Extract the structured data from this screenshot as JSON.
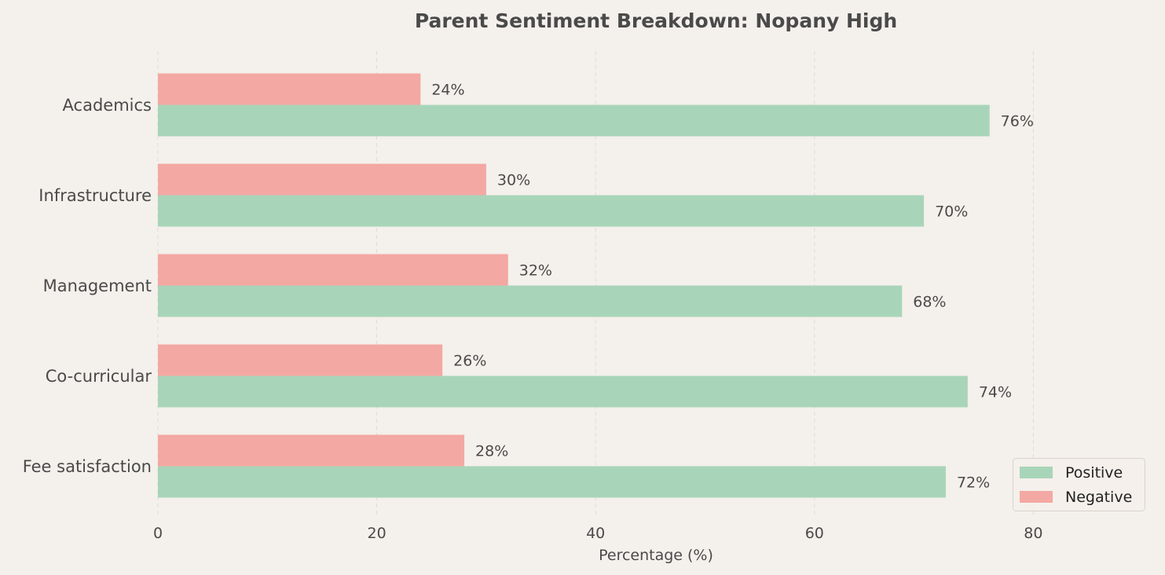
{
  "chart_data": {
    "type": "bar",
    "orientation": "horizontal",
    "title": "Parent Sentiment Breakdown: Nopany High",
    "xlabel": "Percentage (%)",
    "ylabel": "",
    "xlim": [
      0,
      90
    ],
    "xticks": [
      0,
      20,
      40,
      60,
      80
    ],
    "grid": "vertical dashed",
    "legend_position": "bottom-right",
    "value_suffix": "%",
    "categories": [
      "Academics",
      "Infrastructure",
      "Management",
      "Co-curricular",
      "Fee satisfaction"
    ],
    "series": [
      {
        "name": "Positive",
        "color": "#a8d5b9",
        "values": [
          76,
          70,
          68,
          74,
          72
        ]
      },
      {
        "name": "Negative",
        "color": "#f4a8a3",
        "values": [
          24,
          30,
          32,
          26,
          28
        ]
      }
    ]
  },
  "colors": {
    "background": "#f4f0eb",
    "text": "#4a4a4a",
    "grid": "#e0dbd5"
  }
}
